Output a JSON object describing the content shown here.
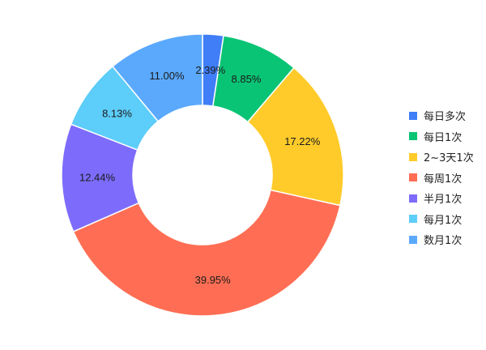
{
  "chart_data": {
    "type": "pie",
    "style": "donut",
    "title": "",
    "categories": [
      "每日多次",
      "每日1次",
      "2~3天1次",
      "每周1次",
      "半月1次",
      "每月1次",
      "数月1次"
    ],
    "values": [
      2.39,
      8.85,
      17.22,
      39.95,
      12.44,
      8.13,
      11.0
    ],
    "labels": [
      "2.39%",
      "8.85%",
      "17.22%",
      "39.95%",
      "12.44%",
      "8.13%",
      "11.00%"
    ],
    "colors": [
      "#3f7ef7",
      "#0ac475",
      "#ffcb2b",
      "#ff6e54",
      "#7d6cfb",
      "#5dcdf9",
      "#5aa9fd"
    ],
    "start_angle_deg": 0,
    "direction": "clockwise",
    "legend_position": "right"
  }
}
